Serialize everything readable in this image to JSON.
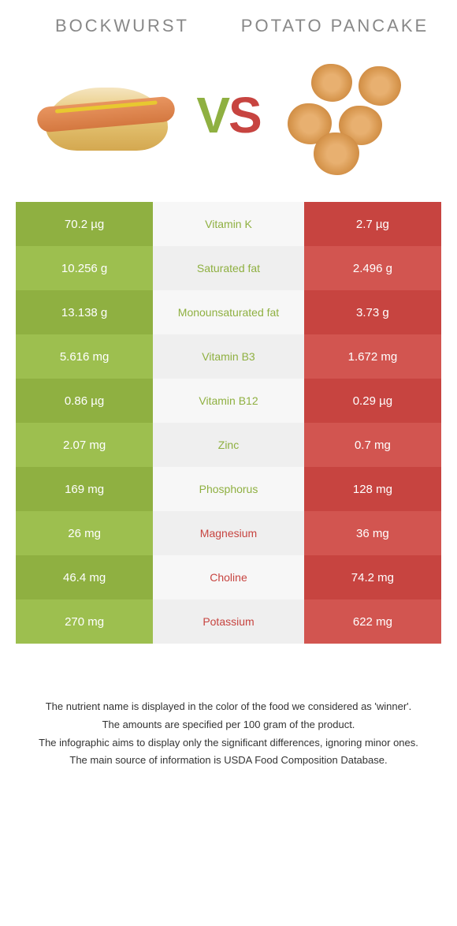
{
  "colors": {
    "green_dark": "#8fb041",
    "green_light": "#9dbf4f",
    "red_dark": "#c74440",
    "red_light": "#d25550",
    "mid_light": "#f7f7f7",
    "mid_dark": "#efefef",
    "label_green": "#8fb041",
    "label_red": "#c74440"
  },
  "foods": {
    "left": "BOCKWURST",
    "right": "POTATO PANCAKE"
  },
  "vs": {
    "v": "V",
    "s": "S"
  },
  "rows": [
    {
      "left": "70.2 µg",
      "label": "Vitamin K",
      "right": "2.7 µg",
      "winner": "left"
    },
    {
      "left": "10.256 g",
      "label": "Saturated fat",
      "right": "2.496 g",
      "winner": "left"
    },
    {
      "left": "13.138 g",
      "label": "Monounsaturated fat",
      "right": "3.73 g",
      "winner": "left"
    },
    {
      "left": "5.616 mg",
      "label": "Vitamin B3",
      "right": "1.672 mg",
      "winner": "left"
    },
    {
      "left": "0.86 µg",
      "label": "Vitamin B12",
      "right": "0.29 µg",
      "winner": "left"
    },
    {
      "left": "2.07 mg",
      "label": "Zinc",
      "right": "0.7 mg",
      "winner": "left"
    },
    {
      "left": "169 mg",
      "label": "Phosphorus",
      "right": "128 mg",
      "winner": "left"
    },
    {
      "left": "26 mg",
      "label": "Magnesium",
      "right": "36 mg",
      "winner": "right"
    },
    {
      "left": "46.4 mg",
      "label": "Choline",
      "right": "74.2 mg",
      "winner": "right"
    },
    {
      "left": "270 mg",
      "label": "Potassium",
      "right": "622 mg",
      "winner": "right"
    }
  ],
  "footer": [
    "The nutrient name is displayed in the color of the food we considered as 'winner'.",
    "The amounts are specified per 100 gram of the product.",
    "The infographic aims to display only the significant differences, ignoring minor ones.",
    "The main source of information is USDA Food Composition Database."
  ]
}
